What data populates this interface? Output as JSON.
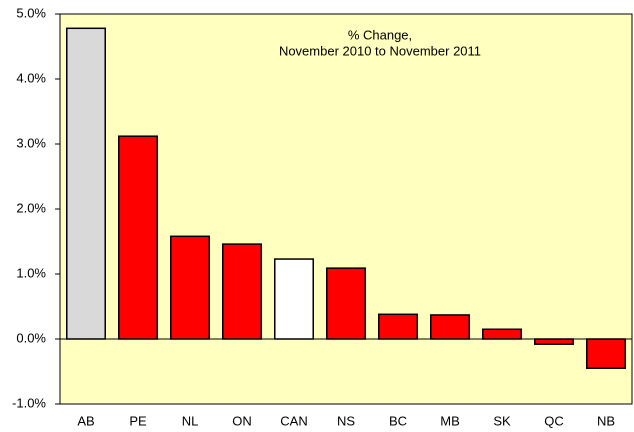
{
  "chart_data": {
    "type": "bar",
    "title": [
      "% Change,",
      "November 2010 to November 2011"
    ],
    "categories": [
      "AB",
      "PE",
      "NL",
      "ON",
      "CAN",
      "NS",
      "BC",
      "MB",
      "SK",
      "QC",
      "NB"
    ],
    "values": [
      4.78,
      3.12,
      1.58,
      1.46,
      1.23,
      1.09,
      0.38,
      0.37,
      0.15,
      -0.08,
      -0.45
    ],
    "colors": [
      "#d9d9d9",
      "#ff0000",
      "#ff0000",
      "#ff0000",
      "#ffffff",
      "#ff0000",
      "#ff0000",
      "#ff0000",
      "#ff0000",
      "#ff0000",
      "#ff0000"
    ],
    "background": "#ffffc0",
    "ylim": [
      -1,
      5
    ],
    "yticks": [
      {
        "value": -1,
        "label": "-1.0%"
      },
      {
        "value": 0,
        "label": "0.0%"
      },
      {
        "value": 1,
        "label": "1.0%"
      },
      {
        "value": 2,
        "label": "2.0%"
      },
      {
        "value": 3,
        "label": "3.0%"
      },
      {
        "value": 4,
        "label": "4.0%"
      },
      {
        "value": 5,
        "label": "5.0%"
      }
    ],
    "grid": false
  }
}
